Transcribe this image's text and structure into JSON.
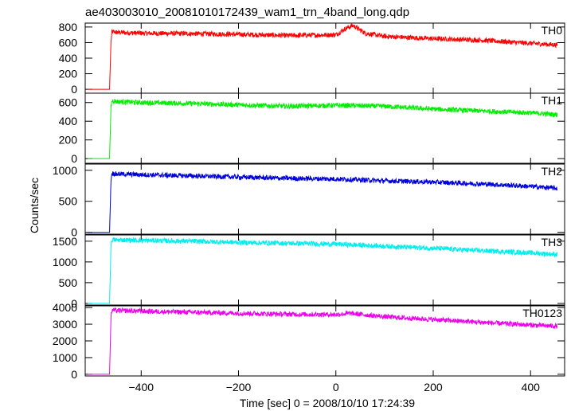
{
  "chart_data": {
    "type": "line",
    "title": "ae403003010_20081010172439_wam1_trn_4band_long.qdp",
    "xlabel": "Time [sec] 0 = 2008/10/10 17:24:39",
    "ylabel": "Counts/sec",
    "xlim": [
      -515,
      470
    ],
    "xticks": [
      -400,
      -200,
      0,
      200,
      400
    ],
    "xtick_labels": [
      "−400",
      "−200",
      "0",
      "200",
      "400"
    ],
    "series": [
      {
        "name": "TH0",
        "color": "#ff0000",
        "ylim": [
          -50,
          850
        ],
        "yticks": [
          0,
          200,
          400,
          600,
          800
        ],
        "x": [
          -510,
          -465,
          -462,
          -460,
          -450,
          -400,
          -300,
          -200,
          -100,
          0,
          20,
          35,
          60,
          100,
          200,
          300,
          400,
          455
        ],
        "y": [
          0,
          0,
          620,
          740,
          730,
          720,
          715,
          705,
          690,
          700,
          780,
          820,
          720,
          680,
          650,
          630,
          590,
          570
        ]
      },
      {
        "name": "TH1",
        "color": "#00ee00",
        "ylim": [
          -50,
          700
        ],
        "yticks": [
          0,
          200,
          400,
          600
        ],
        "x": [
          -510,
          -465,
          -462,
          -460,
          -450,
          -400,
          -300,
          -200,
          -100,
          0,
          100,
          200,
          300,
          400,
          455
        ],
        "y": [
          0,
          0,
          560,
          620,
          610,
          600,
          590,
          575,
          560,
          570,
          560,
          530,
          510,
          490,
          470
        ]
      },
      {
        "name": "TH2",
        "color": "#0000dd",
        "ylim": [
          -30,
          1100
        ],
        "yticks": [
          0,
          500,
          1000
        ],
        "x": [
          -510,
          -465,
          -462,
          -460,
          -450,
          -400,
          -300,
          -200,
          -100,
          0,
          100,
          200,
          300,
          400,
          455
        ],
        "y": [
          0,
          0,
          860,
          950,
          940,
          930,
          910,
          890,
          870,
          860,
          830,
          810,
          780,
          740,
          710
        ]
      },
      {
        "name": "TH3",
        "color": "#00eeee",
        "ylim": [
          -40,
          1650
        ],
        "yticks": [
          0,
          500,
          1000,
          1500
        ],
        "x": [
          -510,
          -465,
          -462,
          -460,
          -450,
          -400,
          -300,
          -200,
          -100,
          0,
          100,
          200,
          300,
          400,
          455
        ],
        "y": [
          0,
          0,
          1400,
          1540,
          1530,
          1520,
          1500,
          1470,
          1450,
          1430,
          1380,
          1330,
          1270,
          1220,
          1180
        ]
      },
      {
        "name": "TH0123",
        "color": "#ee00ee",
        "ylim": [
          -100,
          4100
        ],
        "yticks": [
          0,
          1000,
          2000,
          3000,
          4000
        ],
        "x": [
          -510,
          -465,
          -462,
          -460,
          -450,
          -400,
          -300,
          -200,
          -100,
          0,
          30,
          100,
          200,
          300,
          400,
          455
        ],
        "y": [
          0,
          0,
          3500,
          3850,
          3820,
          3780,
          3720,
          3660,
          3600,
          3580,
          3650,
          3450,
          3280,
          3110,
          2950,
          2880
        ]
      }
    ]
  }
}
